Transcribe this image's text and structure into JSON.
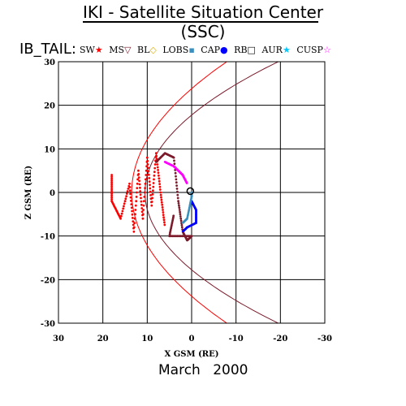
{
  "header": {
    "title": "IKI - Satellite Situation Center (SSC)",
    "satellite_label": "IB_TAIL:",
    "date": "March 2000"
  },
  "legend": [
    {
      "label": "SW",
      "marker": "star",
      "color": "#ff0000"
    },
    {
      "label": "MS",
      "marker": "triangle-down",
      "color": "#7a1a2a"
    },
    {
      "label": "BL",
      "marker": "diamond",
      "color": "#e0b000"
    },
    {
      "label": "LOBS",
      "marker": "square",
      "color": "#3a8fbf"
    },
    {
      "label": "CAP",
      "marker": "circle",
      "color": "#0000ff"
    },
    {
      "label": "RB",
      "marker": "square-open",
      "color": "#000000"
    },
    {
      "label": "AUR",
      "marker": "star",
      "color": "#00c8ff"
    },
    {
      "label": "CUSP",
      "marker": "star-open",
      "color": "#ff00ff"
    }
  ],
  "chart_data": {
    "type": "scatter",
    "xlabel": "X GSM (RE)",
    "ylabel": "Z GSM (RE)",
    "xlim": [
      30,
      -30
    ],
    "ylim": [
      -30,
      30
    ],
    "xticks": [
      "30",
      "20",
      "10",
      "0",
      "-10",
      "-20",
      "-30"
    ],
    "yticks": [
      "30",
      "20",
      "10",
      "0",
      "-10",
      "-20",
      "-30"
    ],
    "grid": true,
    "boundaries": [
      {
        "name": "bow shock",
        "color": "#ff0000",
        "x_nose": 13.5
      },
      {
        "name": "magnetopause",
        "color": "#7a1a2a",
        "x_nose": 10.5
      }
    ],
    "series": [
      {
        "color": "#ff0000",
        "points": [
          [
            18,
            4
          ],
          [
            18,
            -2
          ],
          [
            16,
            -6
          ],
          [
            14,
            2
          ],
          [
            13,
            -9
          ],
          [
            12,
            5
          ],
          [
            11,
            -6
          ],
          [
            10,
            8
          ],
          [
            9,
            -3
          ],
          [
            8,
            9
          ],
          [
            7,
            0
          ],
          [
            6,
            -8
          ]
        ]
      },
      {
        "color": "#7a1a2a",
        "points": [
          [
            8,
            7
          ],
          [
            6,
            9
          ],
          [
            4,
            8
          ],
          [
            3,
            -2
          ],
          [
            2,
            -9
          ],
          [
            1,
            -11
          ],
          [
            0,
            -10
          ],
          [
            5,
            -10
          ],
          [
            4,
            -5
          ]
        ]
      },
      {
        "color": "#ff00ff",
        "points": [
          [
            6,
            7
          ],
          [
            4,
            6
          ],
          [
            3,
            5
          ],
          [
            2,
            4
          ],
          [
            1,
            2
          ]
        ]
      },
      {
        "color": "#0000ff",
        "points": [
          [
            0,
            -2
          ],
          [
            -1,
            -4
          ],
          [
            -1,
            -7
          ],
          [
            1,
            -8
          ],
          [
            2,
            -9
          ]
        ]
      },
      {
        "color": "#3a8fbf",
        "points": [
          [
            0,
            0
          ],
          [
            0,
            -1
          ],
          [
            1,
            -6
          ],
          [
            2,
            -7
          ]
        ]
      },
      {
        "color": "#000000",
        "points": [
          [
            0.3,
            0.3
          ]
        ]
      }
    ]
  }
}
